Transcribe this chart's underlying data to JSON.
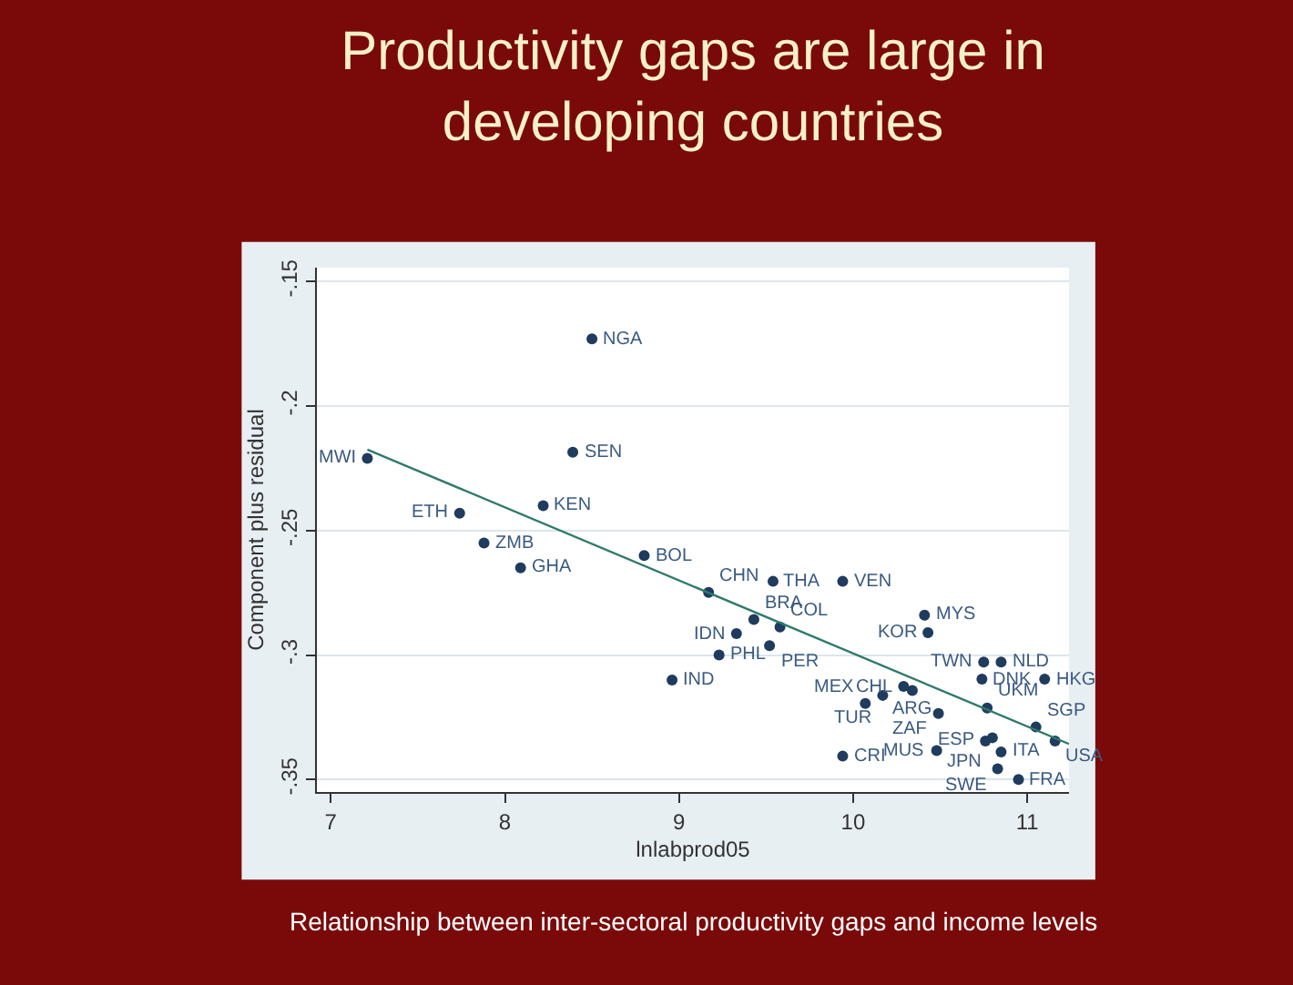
{
  "chart_data": {
    "type": "scatter",
    "title": "Productivity gaps are large in developing countries",
    "xlabel": "lnlabprod05",
    "ylabel": "Component plus residual",
    "xlim": [
      6.92,
      11.24
    ],
    "ylim": [
      -0.355,
      -0.1444
    ],
    "xticks": [
      7,
      8,
      9,
      10,
      11
    ],
    "yticks": [
      {
        "value": -0.35,
        "label": "-.35"
      },
      {
        "value": -0.3,
        "label": "-.3"
      },
      {
        "value": -0.25,
        "label": "-.25"
      },
      {
        "value": -0.2,
        "label": "-.2"
      },
      {
        "value": -0.15,
        "label": "-.15"
      }
    ],
    "grid": "y",
    "series": [
      {
        "marker": "circle",
        "color": "#1f3b5e",
        "x": [
          8.5,
          8.39,
          7.21,
          8.22,
          7.74,
          7.88,
          8.09,
          8.8,
          9.17,
          9.54,
          9.94,
          9.43,
          9.58,
          9.33,
          9.52,
          9.23,
          8.96,
          10.41,
          10.43,
          10.75,
          10.85,
          10.74,
          11.1,
          10.29,
          10.34,
          10.17,
          10.07,
          10.49,
          10.77,
          11.05,
          11.16,
          10.76,
          10.8,
          10.85,
          10.48,
          9.94,
          10.83,
          10.95
        ],
        "values": [
          -0.173,
          -0.2185,
          -0.221,
          -0.24,
          -0.243,
          -0.255,
          -0.265,
          -0.26,
          -0.2748,
          -0.2704,
          -0.2704,
          -0.2857,
          -0.2887,
          -0.2914,
          -0.2962,
          -0.3,
          -0.31,
          -0.284,
          -0.291,
          -0.3028,
          -0.3028,
          -0.3097,
          -0.3097,
          -0.3126,
          -0.3142,
          -0.3162,
          -0.3194,
          -0.3235,
          -0.3213,
          -0.3289,
          -0.3345,
          -0.3345,
          -0.3332,
          -0.3389,
          -0.3384,
          -0.3406,
          -0.3457,
          -0.35
        ]
      },
      {
        "type": "line",
        "color": "#2e7a6a",
        "x": [
          7.21,
          11.24
        ],
        "values": [
          -0.2175,
          -0.3357
        ]
      }
    ],
    "annotations": [
      {
        "text": "NGA",
        "x": 8.5,
        "y": -0.173
      },
      {
        "text": "SEN",
        "x": 8.39,
        "y": -0.2185
      },
      {
        "text": "MWI",
        "x": 7.21,
        "y": -0.221
      },
      {
        "text": "KEN",
        "x": 8.22,
        "y": -0.24
      },
      {
        "text": "ETH",
        "x": 7.74,
        "y": -0.243
      },
      {
        "text": "ZMB",
        "x": 7.88,
        "y": -0.255
      },
      {
        "text": "GHA",
        "x": 8.09,
        "y": -0.265
      },
      {
        "text": "BOL",
        "x": 8.8,
        "y": -0.26
      },
      {
        "text": "CHN",
        "x": 9.17,
        "y": -0.2748
      },
      {
        "text": "THA",
        "x": 9.54,
        "y": -0.2704
      },
      {
        "text": "VEN",
        "x": 9.94,
        "y": -0.2704
      },
      {
        "text": "BRA",
        "x": 9.43,
        "y": -0.2857
      },
      {
        "text": "COL",
        "x": 9.58,
        "y": -0.2887
      },
      {
        "text": "IDN",
        "x": 9.33,
        "y": -0.2914
      },
      {
        "text": "PER",
        "x": 9.52,
        "y": -0.2962
      },
      {
        "text": "PHL",
        "x": 9.23,
        "y": -0.3
      },
      {
        "text": "IND",
        "x": 8.96,
        "y": -0.31
      },
      {
        "text": "MYS",
        "x": 10.41,
        "y": -0.284
      },
      {
        "text": "KOR",
        "x": 10.43,
        "y": -0.291
      },
      {
        "text": "TWN",
        "x": 10.75,
        "y": -0.3028
      },
      {
        "text": "NLD",
        "x": 10.85,
        "y": -0.3028
      },
      {
        "text": "DNK",
        "x": 10.74,
        "y": -0.3097
      },
      {
        "text": "HKG",
        "x": 11.1,
        "y": -0.3097
      },
      {
        "text": "CHL",
        "x": 10.29,
        "y": -0.3126
      },
      {
        "text": "ARG",
        "x": 10.34,
        "y": -0.3142
      },
      {
        "text": "TUR",
        "x": 10.17,
        "y": -0.3162
      },
      {
        "text": "MEX",
        "x": 10.07,
        "y": -0.3194
      },
      {
        "text": "ZAF",
        "x": 10.49,
        "y": -0.3235
      },
      {
        "text": "UKM",
        "x": 10.77,
        "y": -0.3213
      },
      {
        "text": "SGP",
        "x": 11.05,
        "y": -0.3289
      },
      {
        "text": "USA",
        "x": 11.16,
        "y": -0.3345
      },
      {
        "text": "ESP",
        "x": 10.76,
        "y": -0.3345
      },
      {
        "text": "JPN",
        "x": 10.8,
        "y": -0.3332
      },
      {
        "text": "ITA",
        "x": 10.85,
        "y": -0.3389
      },
      {
        "text": "MUS",
        "x": 10.48,
        "y": -0.3384
      },
      {
        "text": "CRI",
        "x": 9.94,
        "y": -0.3406
      },
      {
        "text": "SWE",
        "x": 10.83,
        "y": -0.3457
      },
      {
        "text": "FRA",
        "x": 10.95,
        "y": -0.35
      },
      "Relationship between inter-sectoral productivity gaps and income levels"
    ]
  }
}
